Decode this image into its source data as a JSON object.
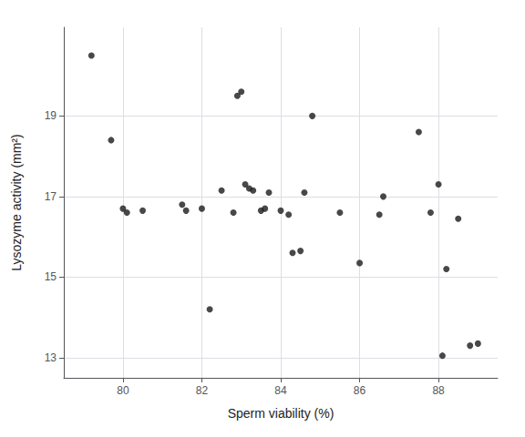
{
  "chart_data": {
    "type": "scatter",
    "xlabel": "Sperm viability (%)",
    "ylabel": "Lysozyme activity (mm²)",
    "x": [
      79.2,
      79.7,
      80.0,
      80.1,
      80.5,
      81.5,
      81.6,
      82.0,
      82.2,
      82.5,
      82.8,
      82.9,
      83.0,
      83.1,
      83.2,
      83.3,
      83.5,
      83.6,
      83.7,
      84.0,
      84.2,
      84.3,
      84.5,
      84.6,
      84.8,
      85.5,
      86.0,
      86.5,
      86.6,
      87.5,
      87.8,
      88.0,
      88.1,
      88.2,
      88.5,
      88.8,
      89.0
    ],
    "values": [
      20.5,
      18.4,
      16.7,
      16.6,
      16.65,
      16.8,
      16.65,
      16.7,
      14.2,
      17.15,
      16.6,
      19.5,
      19.6,
      17.3,
      17.2,
      17.15,
      16.65,
      16.7,
      17.1,
      16.65,
      16.55,
      15.6,
      15.65,
      17.1,
      19.0,
      16.6,
      15.35,
      16.55,
      17.0,
      18.6,
      16.6,
      17.3,
      13.05,
      15.2,
      16.45,
      13.3,
      13.35
    ],
    "color": "#1a1a1a",
    "xlim": [
      78.5,
      89.5
    ],
    "ylim": [
      12.5,
      21.2
    ],
    "xticks": [
      80,
      82,
      84,
      86,
      88
    ],
    "yticks": [
      13,
      15,
      17,
      19
    ],
    "grid": true
  }
}
